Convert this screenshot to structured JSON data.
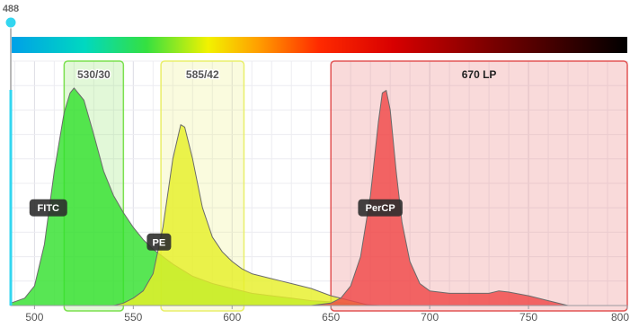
{
  "chart_data": {
    "type": "area",
    "title": "",
    "xlabel": "",
    "ylabel": "",
    "xlim": [
      488,
      800
    ],
    "ylim": [
      0,
      100
    ],
    "x_ticks": [
      "500",
      "550",
      "600",
      "650",
      "700",
      "750",
      "800"
    ],
    "x_tick_values": [
      500,
      550,
      600,
      650,
      700,
      750,
      800
    ],
    "grid": true,
    "laser": {
      "label": "488",
      "wavelength": 488,
      "color": "#33d6f0"
    },
    "spectrum_bar": {
      "start": 488,
      "end": 800
    },
    "filters": [
      {
        "name": "530/30",
        "start": 515,
        "end": 545,
        "color": "#7be04f"
      },
      {
        "name": "585/42",
        "start": 564,
        "end": 606,
        "color": "#e9ef6a"
      },
      {
        "name": "670 LP",
        "start": 650,
        "end": 800,
        "color": "#e25555"
      }
    ],
    "series": [
      {
        "name": "FITC",
        "color": "#33e02e",
        "label_x": 507,
        "label_y": 40,
        "x": [
          488,
          495,
          500,
          505,
          510,
          515,
          518,
          520,
          525,
          530,
          535,
          540,
          545,
          550,
          555,
          560,
          570,
          580,
          590,
          600,
          610,
          620,
          630,
          640,
          650,
          660,
          675
        ],
        "y": [
          1,
          3,
          8,
          25,
          55,
          79,
          87,
          89,
          84,
          70,
          55,
          45,
          38,
          32,
          27,
          23,
          17,
          12,
          9,
          7,
          5,
          4,
          3,
          2,
          1.5,
          0.8,
          0
        ]
      },
      {
        "name": "PE",
        "color": "#e6ef2a",
        "label_x": 563,
        "label_y": 26,
        "x": [
          540,
          545,
          550,
          555,
          560,
          565,
          570,
          574,
          576,
          580,
          585,
          590,
          595,
          600,
          605,
          610,
          620,
          625,
          630,
          640,
          650,
          660,
          670
        ],
        "y": [
          0,
          1,
          3,
          6,
          13,
          32,
          60,
          74,
          73,
          60,
          40,
          28,
          22,
          18,
          15,
          13,
          11,
          10,
          9,
          7,
          4,
          2,
          0
        ]
      },
      {
        "name": "PerCP",
        "color": "#f04848",
        "label_x": 675,
        "label_y": 40,
        "x": [
          640,
          650,
          655,
          660,
          665,
          670,
          674,
          676,
          678,
          680,
          683,
          686,
          690,
          695,
          700,
          710,
          720,
          730,
          735,
          740,
          750,
          760,
          770
        ],
        "y": [
          0,
          1,
          3,
          8,
          20,
          45,
          75,
          87,
          88,
          80,
          55,
          34,
          18,
          9,
          6,
          5,
          5,
          5,
          6,
          5.5,
          4,
          2,
          0
        ]
      }
    ]
  }
}
